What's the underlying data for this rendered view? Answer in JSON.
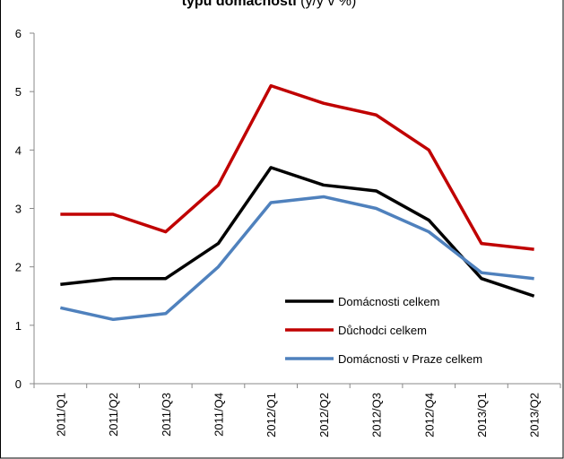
{
  "chart_data": {
    "type": "line",
    "title": [
      "typu domácností",
      "(y/y v %)"
    ],
    "categories": [
      "2011/Q1",
      "2011/Q2",
      "2011/Q3",
      "2011/Q4",
      "2012/Q1",
      "2012/Q2",
      "2012/Q3",
      "2012/Q4",
      "2013/Q1",
      "2013/Q2"
    ],
    "series": [
      {
        "name": "Domácnosti celkem",
        "color": "#000000",
        "values": [
          1.7,
          1.8,
          1.8,
          2.4,
          3.7,
          3.4,
          3.3,
          2.8,
          1.8,
          1.5
        ]
      },
      {
        "name": "Důchodci celkem",
        "color": "#c00000",
        "values": [
          2.9,
          2.9,
          2.6,
          3.4,
          5.1,
          4.8,
          4.6,
          4.0,
          2.4,
          2.3
        ]
      },
      {
        "name": "Domácnosti v Praze celkem",
        "color": "#4f81bd",
        "values": [
          1.3,
          1.1,
          1.2,
          2.0,
          3.1,
          3.2,
          3.0,
          2.6,
          1.9,
          1.8
        ]
      }
    ],
    "ylim": [
      0,
      6
    ],
    "yticks": [
      0,
      1,
      2,
      3,
      4,
      5,
      6
    ],
    "grid": false
  }
}
